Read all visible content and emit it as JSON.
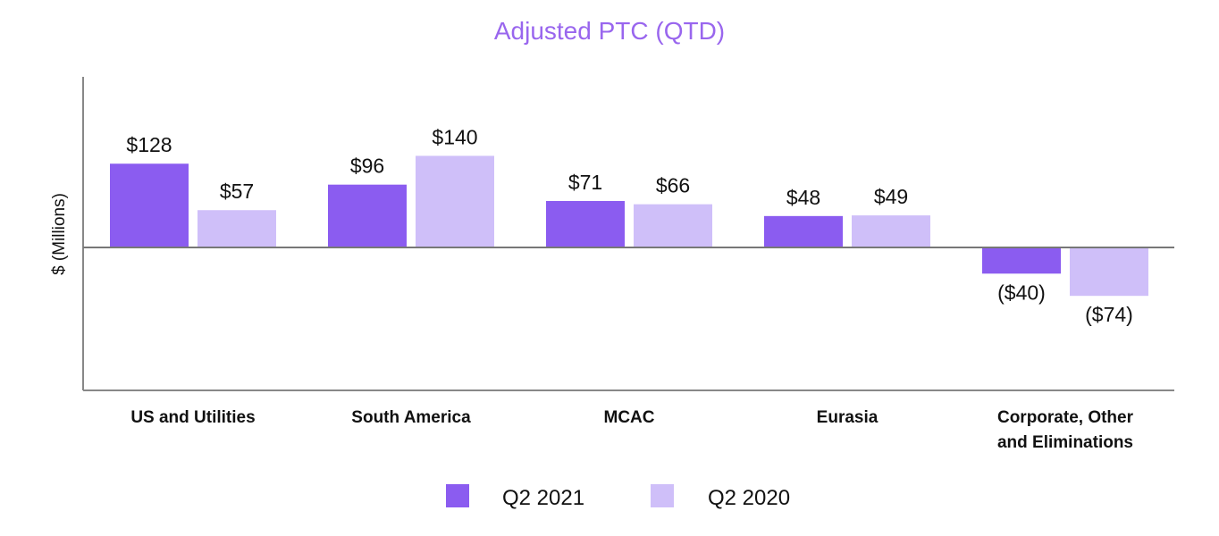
{
  "chart_data": {
    "type": "bar",
    "title": "Adjusted PTC (QTD)",
    "xlabel": "",
    "ylabel": "$ (Millions)",
    "ylim": [
      -200,
      240
    ],
    "grid": false,
    "legend_position": "bottom-center",
    "categories": [
      [
        "US and Utilities"
      ],
      [
        "South America"
      ],
      [
        "MCAC"
      ],
      [
        "Eurasia"
      ],
      [
        "Corporate, Other",
        "and Eliminations"
      ]
    ],
    "series": [
      {
        "name": "Q2 2021",
        "color": "#8b5cf0",
        "values": [
          128,
          96,
          71,
          48,
          -40
        ],
        "labels": [
          "$128",
          "$96",
          "$71",
          "$48",
          "($40)"
        ]
      },
      {
        "name": "Q2 2020",
        "color": "#cfbff9",
        "values": [
          57,
          140,
          66,
          49,
          -74
        ],
        "labels": [
          "$57",
          "$140",
          "$66",
          "$49",
          "($74)"
        ]
      }
    ],
    "title_color": "#9966ee",
    "axis_color": "#888888"
  }
}
